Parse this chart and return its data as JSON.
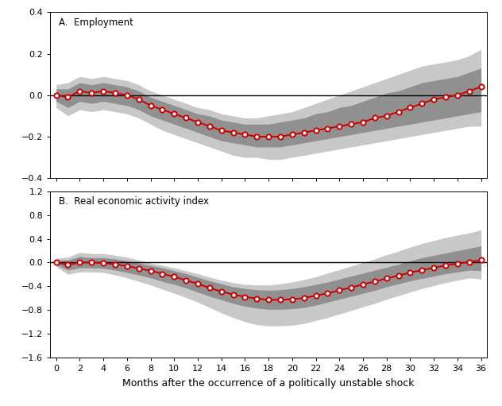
{
  "title_A": "A.  Employment",
  "title_B": "B.  Real economic activity index",
  "xlabel": "Months after the occurrence of a politically unstable shock",
  "months": [
    0,
    1,
    2,
    3,
    4,
    5,
    6,
    7,
    8,
    9,
    10,
    11,
    12,
    13,
    14,
    15,
    16,
    17,
    18,
    19,
    20,
    21,
    22,
    23,
    24,
    25,
    26,
    27,
    28,
    29,
    30,
    31,
    32,
    33,
    34,
    35,
    36
  ],
  "A_median": [
    0.0,
    -0.01,
    0.02,
    0.01,
    0.02,
    0.01,
    0.0,
    -0.02,
    -0.05,
    -0.07,
    -0.09,
    -0.11,
    -0.13,
    -0.15,
    -0.17,
    -0.18,
    -0.19,
    -0.2,
    -0.2,
    -0.2,
    -0.19,
    -0.18,
    -0.17,
    -0.16,
    -0.15,
    -0.14,
    -0.13,
    -0.11,
    -0.1,
    -0.08,
    -0.06,
    -0.04,
    -0.02,
    -0.01,
    0.0,
    0.02,
    0.04
  ],
  "A_ci68_upper": [
    0.03,
    0.03,
    0.06,
    0.05,
    0.06,
    0.05,
    0.04,
    0.02,
    -0.01,
    -0.03,
    -0.05,
    -0.07,
    -0.09,
    -0.1,
    -0.12,
    -0.13,
    -0.14,
    -0.14,
    -0.14,
    -0.13,
    -0.12,
    -0.11,
    -0.09,
    -0.08,
    -0.06,
    -0.05,
    -0.03,
    -0.01,
    0.01,
    0.02,
    0.04,
    0.06,
    0.07,
    0.08,
    0.09,
    0.11,
    0.13
  ],
  "A_ci68_lower": [
    -0.03,
    -0.06,
    -0.03,
    -0.04,
    -0.03,
    -0.04,
    -0.05,
    -0.07,
    -0.1,
    -0.12,
    -0.14,
    -0.16,
    -0.18,
    -0.2,
    -0.22,
    -0.23,
    -0.24,
    -0.25,
    -0.25,
    -0.25,
    -0.24,
    -0.23,
    -0.22,
    -0.21,
    -0.2,
    -0.19,
    -0.18,
    -0.17,
    -0.16,
    -0.15,
    -0.14,
    -0.13,
    -0.12,
    -0.11,
    -0.1,
    -0.09,
    -0.08
  ],
  "A_ci90_upper": [
    0.05,
    0.06,
    0.09,
    0.08,
    0.09,
    0.08,
    0.07,
    0.05,
    0.02,
    0.0,
    -0.02,
    -0.04,
    -0.06,
    -0.07,
    -0.09,
    -0.1,
    -0.11,
    -0.11,
    -0.1,
    -0.09,
    -0.08,
    -0.06,
    -0.04,
    -0.02,
    0.0,
    0.02,
    0.04,
    0.06,
    0.08,
    0.1,
    0.12,
    0.14,
    0.15,
    0.16,
    0.17,
    0.19,
    0.22
  ],
  "A_ci90_lower": [
    -0.06,
    -0.1,
    -0.07,
    -0.08,
    -0.07,
    -0.08,
    -0.09,
    -0.11,
    -0.14,
    -0.17,
    -0.19,
    -0.21,
    -0.23,
    -0.25,
    -0.27,
    -0.29,
    -0.3,
    -0.3,
    -0.31,
    -0.31,
    -0.3,
    -0.29,
    -0.28,
    -0.27,
    -0.26,
    -0.25,
    -0.24,
    -0.23,
    -0.22,
    -0.21,
    -0.2,
    -0.19,
    -0.18,
    -0.17,
    -0.16,
    -0.15,
    -0.15
  ],
  "B_median": [
    0.0,
    -0.04,
    0.0,
    0.0,
    -0.01,
    -0.03,
    -0.06,
    -0.1,
    -0.14,
    -0.19,
    -0.24,
    -0.3,
    -0.36,
    -0.43,
    -0.49,
    -0.54,
    -0.58,
    -0.61,
    -0.63,
    -0.63,
    -0.62,
    -0.6,
    -0.56,
    -0.52,
    -0.47,
    -0.42,
    -0.37,
    -0.32,
    -0.27,
    -0.22,
    -0.17,
    -0.13,
    -0.09,
    -0.05,
    -0.02,
    0.01,
    0.04
  ],
  "B_ci68_upper": [
    0.04,
    0.04,
    0.1,
    0.08,
    0.08,
    0.06,
    0.03,
    -0.01,
    -0.05,
    -0.09,
    -0.14,
    -0.19,
    -0.25,
    -0.31,
    -0.36,
    -0.41,
    -0.44,
    -0.46,
    -0.47,
    -0.46,
    -0.44,
    -0.41,
    -0.37,
    -0.33,
    -0.28,
    -0.23,
    -0.18,
    -0.13,
    -0.08,
    -0.03,
    0.03,
    0.08,
    0.12,
    0.16,
    0.2,
    0.24,
    0.28
  ],
  "B_ci68_lower": [
    -0.04,
    -0.13,
    -0.09,
    -0.09,
    -0.1,
    -0.13,
    -0.17,
    -0.21,
    -0.26,
    -0.32,
    -0.37,
    -0.43,
    -0.5,
    -0.57,
    -0.63,
    -0.69,
    -0.74,
    -0.77,
    -0.79,
    -0.79,
    -0.78,
    -0.76,
    -0.72,
    -0.67,
    -0.62,
    -0.57,
    -0.52,
    -0.47,
    -0.41,
    -0.36,
    -0.31,
    -0.27,
    -0.23,
    -0.19,
    -0.16,
    -0.13,
    -0.14
  ],
  "B_ci90_upper": [
    0.07,
    0.09,
    0.17,
    0.15,
    0.15,
    0.12,
    0.09,
    0.04,
    -0.01,
    -0.05,
    -0.09,
    -0.14,
    -0.19,
    -0.25,
    -0.3,
    -0.34,
    -0.37,
    -0.38,
    -0.38,
    -0.36,
    -0.33,
    -0.29,
    -0.24,
    -0.18,
    -0.12,
    -0.06,
    0.0,
    0.06,
    0.13,
    0.19,
    0.26,
    0.32,
    0.37,
    0.42,
    0.46,
    0.5,
    0.55
  ],
  "B_ci90_lower": [
    -0.07,
    -0.2,
    -0.16,
    -0.16,
    -0.17,
    -0.21,
    -0.26,
    -0.32,
    -0.38,
    -0.45,
    -0.52,
    -0.59,
    -0.67,
    -0.76,
    -0.85,
    -0.93,
    -1.0,
    -1.05,
    -1.07,
    -1.07,
    -1.06,
    -1.03,
    -0.98,
    -0.93,
    -0.87,
    -0.81,
    -0.75,
    -0.69,
    -0.62,
    -0.56,
    -0.5,
    -0.44,
    -0.39,
    -0.34,
    -0.3,
    -0.26,
    -0.28
  ],
  "ylim_A": [
    -0.4,
    0.4
  ],
  "yticks_A": [
    -0.4,
    -0.2,
    0.0,
    0.2,
    0.4
  ],
  "ylim_B": [
    -1.6,
    1.2
  ],
  "yticks_B": [
    -1.6,
    -1.2,
    -0.8,
    -0.4,
    0.0,
    0.4,
    0.8,
    1.2
  ],
  "xlim": [
    -0.5,
    36.5
  ],
  "xticks": [
    0,
    2,
    4,
    6,
    8,
    10,
    12,
    14,
    16,
    18,
    20,
    22,
    24,
    26,
    28,
    30,
    32,
    34,
    36
  ],
  "color_ci90": "#c8c8c8",
  "color_ci68": "#909090",
  "color_median_line": "#cc0000",
  "color_median_marker_face": "white",
  "color_zero_line": "black",
  "marker_edgecolor": "#cc0000",
  "marker_size": 4.5,
  "marker_edgewidth": 1.4
}
